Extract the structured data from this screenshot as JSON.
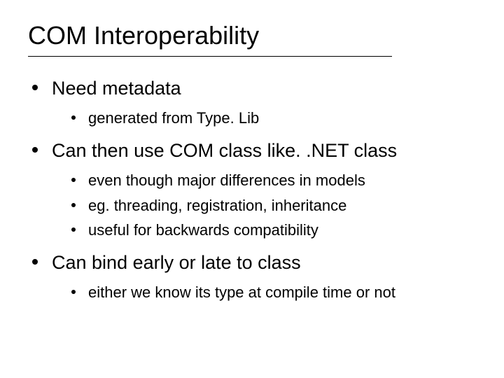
{
  "title": "COM Interoperability",
  "title_fontsize": 36,
  "body_level1_fontsize": 27,
  "body_level2_fontsize": 22,
  "text_color": "#000000",
  "bullet_color": "#000000",
  "background_color": "#ffffff",
  "underline_width": 520,
  "slide_width": 720,
  "slide_height": 540,
  "items": [
    {
      "text": "Need metadata",
      "children": [
        {
          "text": "generated from Type. Lib"
        }
      ]
    },
    {
      "text": "Can then use COM class like. .NET class",
      "children": [
        {
          "text": "even though major differences in models"
        },
        {
          "text": "eg. threading, registration, inheritance"
        },
        {
          "text": "useful for backwards compatibility"
        }
      ]
    },
    {
      "text": "Can bind early or late to class",
      "children": [
        {
          "text": "either we know its type at compile time or not"
        }
      ]
    }
  ]
}
